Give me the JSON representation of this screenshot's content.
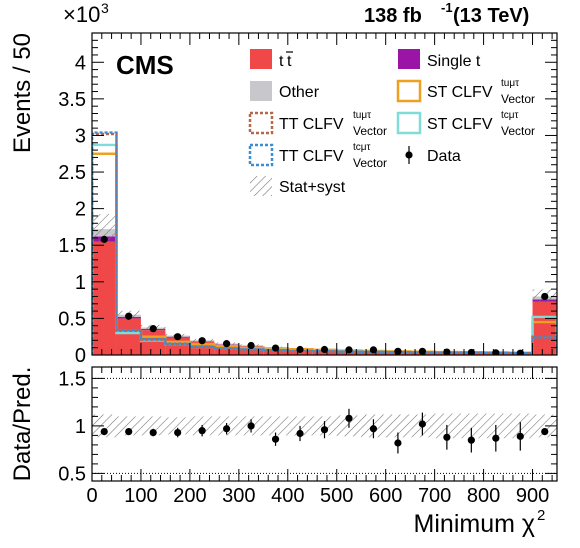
{
  "header": {
    "experiment": "CMS",
    "lumi_value": "138 fb",
    "lumi_exp": "-1",
    "lumi_energy": " (13 TeV)"
  },
  "axes": {
    "ylabel_top": "Events / 50",
    "ylabel_bottom": "Data/Pred.",
    "xlabel_main": "Minimum χ",
    "xlabel_sup": "2",
    "multiplier_base": "×10",
    "multiplier_exp": "3"
  },
  "legend": {
    "ttbar": "t",
    "single_t": "Single t",
    "other": "Other",
    "st_clfv_top": "ST CLFV",
    "st_clfv_top_sup": "tuμτ",
    "st_clfv_top_sub": "Vector",
    "tt_clfv_top": "TT CLFV",
    "tt_clfv_top_sup": "tuμτ",
    "tt_clfv_top_sub": "Vector",
    "st_clfv_c": "ST CLFV",
    "st_clfv_c_sup": "tcμτ",
    "st_clfv_c_sub": "Vector",
    "tt_clfv_c": "TT CLFV",
    "tt_clfv_c_sup": "tcμτ",
    "tt_clfv_c_sub": "Vector",
    "data": "Data",
    "unc": "Stat+syst"
  },
  "colors": {
    "ttbar": "#f04848",
    "single_t": "#9a14a6",
    "other": "#c8c8cc",
    "st_tu": "#f0a020",
    "st_tc": "#80dcd8",
    "tt_tu": "#b46a4a",
    "tt_tc": "#3c8cd6"
  },
  "chart_data": [
    {
      "type": "bar",
      "stacked": true,
      "x_edges": [
        0,
        50,
        100,
        150,
        200,
        250,
        300,
        350,
        400,
        450,
        500,
        550,
        600,
        650,
        700,
        750,
        800,
        850,
        900,
        950
      ],
      "xlim": [
        0,
        950
      ],
      "ylim": [
        0,
        4400
      ],
      "y_multiplier": "×10^3",
      "y_ticks": [
        0,
        500,
        1000,
        1500,
        2000,
        2500,
        3000,
        3500,
        4000
      ],
      "y_tick_labels": [
        "0",
        "0.5",
        "1",
        "1.5",
        "2",
        "2.5",
        "3",
        "3.5",
        "4"
      ],
      "x_ticks": [
        0,
        100,
        200,
        300,
        400,
        500,
        600,
        700,
        800,
        900
      ],
      "x_tick_labels": [
        "0",
        "100",
        "200",
        "300",
        "400",
        "500",
        "600",
        "700",
        "800",
        "900"
      ],
      "xlabel": "Minimum χ2",
      "ylabel": "Events / 50",
      "series": [
        {
          "name": "tt̄",
          "values": [
            1550,
            500,
            340,
            240,
            180,
            140,
            120,
            95,
            80,
            70,
            60,
            55,
            50,
            45,
            40,
            38,
            35,
            30,
            730
          ]
        },
        {
          "name": "Single t",
          "values": [
            70,
            20,
            15,
            10,
            8,
            6,
            5,
            4,
            4,
            3,
            3,
            3,
            2,
            2,
            2,
            2,
            2,
            2,
            30
          ]
        },
        {
          "name": "Other",
          "values": [
            100,
            30,
            20,
            15,
            12,
            10,
            8,
            7,
            6,
            5,
            5,
            4,
            4,
            3,
            3,
            3,
            3,
            3,
            40
          ]
        }
      ],
      "signals": [
        {
          "name": "ST CLFV tuμτ Vector",
          "values": [
            2750,
            330,
            250,
            180,
            150,
            120,
            100,
            90,
            80,
            70,
            60,
            55,
            50,
            45,
            40,
            38,
            35,
            30,
            450
          ]
        },
        {
          "name": "ST CLFV tcμτ Vector",
          "values": [
            2870,
            300,
            200,
            150,
            110,
            90,
            80,
            70,
            60,
            55,
            50,
            45,
            40,
            38,
            35,
            32,
            30,
            28,
            520
          ]
        },
        {
          "name": "TT CLFV tuμτ Vector",
          "values": [
            3020,
            330,
            210,
            150,
            110,
            90,
            75,
            65,
            55,
            50,
            45,
            40,
            38,
            35,
            32,
            30,
            28,
            26,
            250
          ]
        },
        {
          "name": "TT CLFV tcμτ Vector",
          "values": [
            3040,
            340,
            215,
            155,
            112,
            92,
            78,
            66,
            57,
            52,
            46,
            42,
            39,
            36,
            33,
            31,
            29,
            27,
            240
          ]
        }
      ],
      "unc_total": [
        1800,
        600,
        420,
        300,
        230,
        180,
        150,
        120,
        100,
        90,
        80,
        75,
        65,
        60,
        55,
        50,
        48,
        45,
        950
      ],
      "unc_fraction": [
        0.12,
        0.1,
        0.1,
        0.09,
        0.1,
        0.1,
        0.1,
        0.1,
        0.1,
        0.1,
        0.11,
        0.12,
        0.12,
        0.12,
        0.13,
        0.13,
        0.13,
        0.13,
        0.12
      ],
      "data": {
        "name": "Data",
        "x": [
          25,
          75,
          125,
          175,
          225,
          275,
          325,
          375,
          425,
          475,
          525,
          575,
          625,
          675,
          725,
          775,
          825,
          875,
          925
        ],
        "y": [
          1580,
          530,
          360,
          250,
          195,
          155,
          130,
          95,
          75,
          75,
          70,
          70,
          50,
          50,
          40,
          35,
          30,
          25,
          800
        ]
      }
    },
    {
      "type": "scatter",
      "ylabel": "Data/Pred.",
      "xlim": [
        0,
        950
      ],
      "ylim": [
        0.42,
        1.62
      ],
      "y_ticks": [
        0.5,
        1,
        1.5
      ],
      "y_tick_labels": [
        "0.5",
        "1",
        "1.5"
      ],
      "reference_lines": [
        0.5,
        1.5
      ],
      "x": [
        25,
        75,
        125,
        175,
        225,
        275,
        325,
        375,
        425,
        475,
        525,
        575,
        625,
        675,
        725,
        775,
        825,
        875,
        925
      ],
      "y": [
        0.94,
        0.94,
        0.93,
        0.93,
        0.95,
        0.97,
        1.0,
        0.86,
        0.92,
        0.96,
        1.08,
        0.97,
        0.82,
        1.02,
        0.88,
        0.85,
        0.87,
        0.89,
        0.94
      ],
      "yerr": [
        0.02,
        0.03,
        0.04,
        0.05,
        0.06,
        0.06,
        0.07,
        0.07,
        0.08,
        0.09,
        0.1,
        0.1,
        0.11,
        0.12,
        0.13,
        0.13,
        0.14,
        0.15,
        0.03
      ]
    }
  ]
}
